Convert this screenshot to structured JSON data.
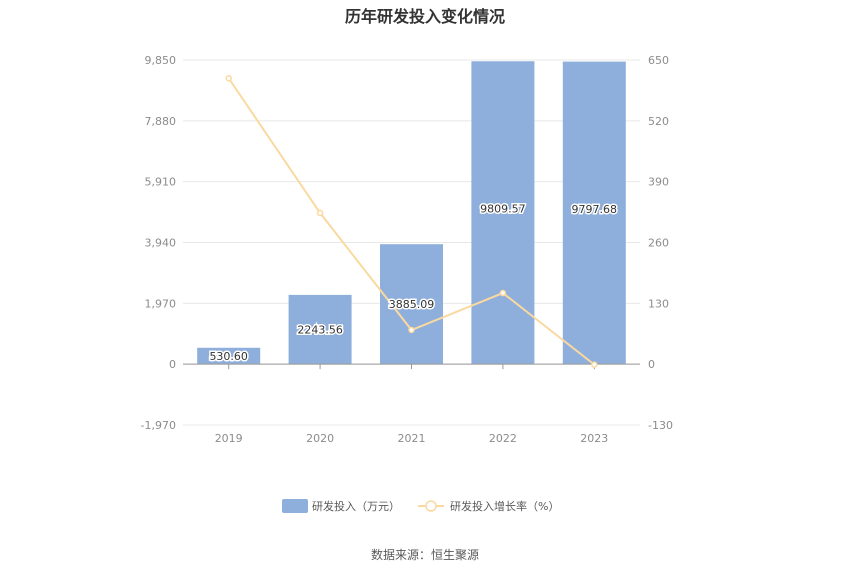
{
  "title": "历年研发投入变化情况",
  "source": "数据来源：恒生聚源",
  "chart_data": {
    "type": "bar",
    "categories": [
      "2019",
      "2020",
      "2021",
      "2022",
      "2023"
    ],
    "series": [
      {
        "name": "研发投入（万元）",
        "type": "bar",
        "axis": "left",
        "values": [
          530.6,
          2243.56,
          3885.09,
          9809.57,
          9797.68
        ],
        "labels": [
          "530.60",
          "2243.56",
          "3885.09",
          "9809.57",
          "9797.68"
        ],
        "color": "#8eaedb"
      },
      {
        "name": "研发投入增长率（%）",
        "type": "line",
        "axis": "right",
        "values": [
          611,
          323,
          73,
          152,
          -1
        ],
        "color": "#fad9a1"
      }
    ],
    "y_left": {
      "min": -1970,
      "max": 9850,
      "ticks": [
        "-1,970",
        "0",
        "1,970",
        "3,940",
        "5,910",
        "7,880",
        "9,850"
      ]
    },
    "y_right": {
      "min": -130,
      "max": 650,
      "ticks": [
        "-130",
        "0",
        "130",
        "260",
        "390",
        "520",
        "650"
      ]
    },
    "grid": true,
    "legend_position": "bottom"
  }
}
